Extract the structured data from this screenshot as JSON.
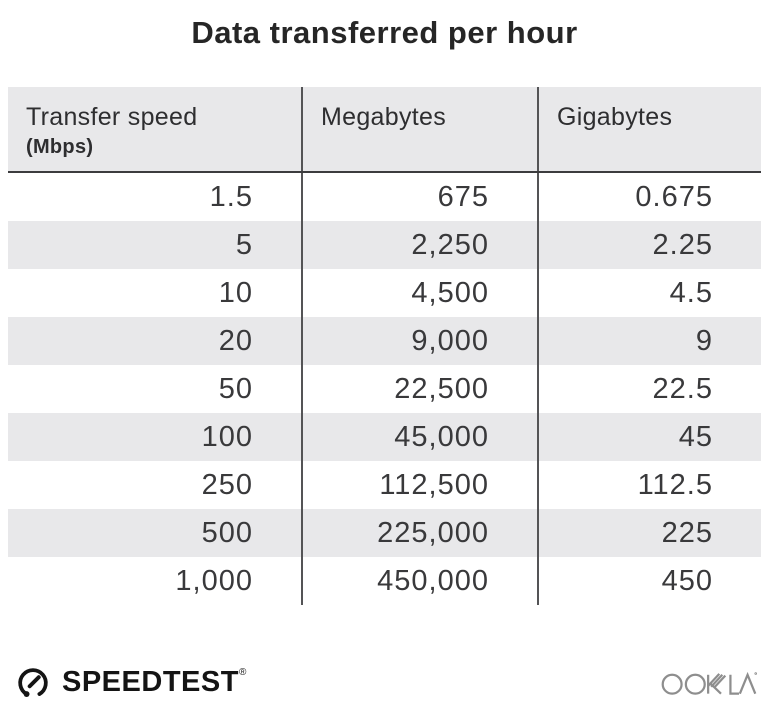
{
  "title": "Data transferred per hour",
  "table": {
    "columns": [
      {
        "label": "Transfer speed",
        "sublabel": "(Mbps)"
      },
      {
        "label": "Megabytes",
        "sublabel": ""
      },
      {
        "label": "Gigabytes",
        "sublabel": ""
      }
    ],
    "rows": [
      [
        "1.5",
        "675",
        "0.675"
      ],
      [
        "5",
        "2,250",
        "2.25"
      ],
      [
        "10",
        "4,500",
        "4.5"
      ],
      [
        "20",
        "9,000",
        "9"
      ],
      [
        "50",
        "22,500",
        "22.5"
      ],
      [
        "100",
        "45,000",
        "45"
      ],
      [
        "250",
        "112,500",
        "112.5"
      ],
      [
        "500",
        "225,000",
        "225"
      ],
      [
        "1,000",
        "450,000",
        "450"
      ]
    ]
  },
  "footer": {
    "brand": "SPEEDTEST",
    "brand_trademark": "®",
    "company": "OOKLA"
  },
  "colors": {
    "header_bg": "#e8e8ea",
    "stripe": "#e8e8ea",
    "divider": "#545456",
    "header_border": "#3c3c3e",
    "title_text": "#262626",
    "number_text": "#39393b",
    "brand_black": "#141414",
    "ookla_gray": "#8e8e8e"
  },
  "chart_data": {
    "type": "table",
    "title": "Data transferred per hour",
    "columns": [
      "Transfer speed (Mbps)",
      "Megabytes",
      "Gigabytes"
    ],
    "rows": [
      [
        1.5,
        675,
        0.675
      ],
      [
        5,
        2250,
        2.25
      ],
      [
        10,
        4500,
        4.5
      ],
      [
        20,
        9000,
        9
      ],
      [
        50,
        22500,
        22.5
      ],
      [
        100,
        45000,
        45
      ],
      [
        250,
        112500,
        112.5
      ],
      [
        500,
        225000,
        225
      ],
      [
        1000,
        450000,
        450
      ]
    ]
  }
}
